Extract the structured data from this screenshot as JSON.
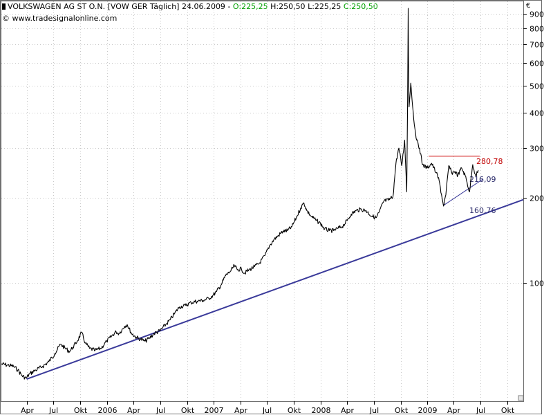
{
  "header": {
    "instrument": "VOLKSWAGEN AG ST O.N. [VOW GER  Täglich]",
    "date": "24.06.2009",
    "sep": "-",
    "open": "O:225,25",
    "high": "H:250,50",
    "low": "L:225,25",
    "close": "C:250,50",
    "copyright": "© www.tradesignalonline.com",
    "currency": "€"
  },
  "colors": {
    "price": "#000000",
    "trend_main": "#3a3a9a",
    "trend_small": "#3a3a9a",
    "resistance": "#d01818",
    "label_red": "#c00000",
    "label_blue": "#2a2a6a",
    "grid": "#c8c8c8",
    "frame": "#707070"
  },
  "chart_data": {
    "type": "line",
    "scale": "log",
    "ylim": [
      38,
      1000
    ],
    "y_ticks": [
      100,
      200,
      300,
      400,
      500,
      600,
      700,
      800,
      900
    ],
    "y_tick_labels": [
      "100",
      "200",
      "300",
      "400",
      "500",
      "600",
      "700",
      "800",
      "900"
    ],
    "x_ticks": [
      {
        "date": "2005-04-01",
        "label": "Apr"
      },
      {
        "date": "2005-07-01",
        "label": "Jul"
      },
      {
        "date": "2005-10-01",
        "label": "Okt"
      },
      {
        "date": "2006-01-01",
        "label": "2006"
      },
      {
        "date": "2006-04-01",
        "label": "Apr"
      },
      {
        "date": "2006-07-01",
        "label": "Jul"
      },
      {
        "date": "2006-10-01",
        "label": "Okt"
      },
      {
        "date": "2007-01-01",
        "label": "2007"
      },
      {
        "date": "2007-04-01",
        "label": "Apr"
      },
      {
        "date": "2007-07-01",
        "label": "Jul"
      },
      {
        "date": "2007-10-01",
        "label": "Okt"
      },
      {
        "date": "2008-01-01",
        "label": "2008"
      },
      {
        "date": "2008-04-01",
        "label": "Apr"
      },
      {
        "date": "2008-07-01",
        "label": "Jul"
      },
      {
        "date": "2008-10-01",
        "label": "Okt"
      },
      {
        "date": "2009-01-01",
        "label": "2009"
      },
      {
        "date": "2009-04-01",
        "label": "Apr"
      },
      {
        "date": "2009-07-01",
        "label": "Jul"
      },
      {
        "date": "2009-10-01",
        "label": "Okt"
      }
    ],
    "xlim": [
      "2005-01-01",
      "2009-11-25"
    ],
    "series": [
      {
        "points": [
          [
            "2005-01-03",
            51.5
          ],
          [
            "2005-01-24",
            51
          ],
          [
            "2005-02-14",
            50.5
          ],
          [
            "2005-03-01",
            49
          ],
          [
            "2005-03-15",
            46.8
          ],
          [
            "2005-03-29",
            45.8
          ],
          [
            "2005-04-10",
            47.5
          ],
          [
            "2005-05-01",
            49
          ],
          [
            "2005-05-25",
            50.5
          ],
          [
            "2005-06-15",
            52.5
          ],
          [
            "2005-07-05",
            56
          ],
          [
            "2005-07-25",
            60.5
          ],
          [
            "2005-08-10",
            58.5
          ],
          [
            "2005-08-25",
            57
          ],
          [
            "2005-09-05",
            59
          ],
          [
            "2005-09-20",
            62
          ],
          [
            "2005-10-05",
            66.5
          ],
          [
            "2005-10-18",
            61
          ],
          [
            "2005-11-01",
            58.5
          ],
          [
            "2005-11-20",
            57.5
          ],
          [
            "2005-12-10",
            58.5
          ],
          [
            "2005-12-30",
            62
          ],
          [
            "2006-01-15",
            64.5
          ],
          [
            "2006-01-31",
            67
          ],
          [
            "2006-02-10",
            66
          ],
          [
            "2006-03-01",
            70
          ],
          [
            "2006-03-10",
            71
          ],
          [
            "2006-03-25",
            66
          ],
          [
            "2006-04-10",
            64
          ],
          [
            "2006-04-25",
            63
          ],
          [
            "2006-05-10",
            62
          ],
          [
            "2006-05-25",
            63.5
          ],
          [
            "2006-06-10",
            66
          ],
          [
            "2006-06-30",
            67.5
          ],
          [
            "2006-07-20",
            71
          ],
          [
            "2006-08-05",
            74
          ],
          [
            "2006-08-20",
            78
          ],
          [
            "2006-09-05",
            82
          ],
          [
            "2006-09-25",
            83
          ],
          [
            "2006-10-15",
            85
          ],
          [
            "2006-11-05",
            86
          ],
          [
            "2006-11-25",
            86.5
          ],
          [
            "2006-12-15",
            88
          ],
          [
            "2006-12-28",
            90
          ],
          [
            "2007-01-10",
            93
          ],
          [
            "2007-01-25",
            98
          ],
          [
            "2007-02-10",
            106
          ],
          [
            "2007-02-28",
            110
          ],
          [
            "2007-03-12",
            115
          ],
          [
            "2007-03-22",
            111
          ],
          [
            "2007-04-05",
            112
          ],
          [
            "2007-04-15",
            108
          ],
          [
            "2007-05-01",
            111
          ],
          [
            "2007-05-20",
            114
          ],
          [
            "2007-06-05",
            117
          ],
          [
            "2007-06-25",
            125
          ],
          [
            "2007-07-10",
            135
          ],
          [
            "2007-07-25",
            142
          ],
          [
            "2007-08-10",
            147
          ],
          [
            "2007-08-25",
            152
          ],
          [
            "2007-09-10",
            153
          ],
          [
            "2007-09-25",
            158
          ],
          [
            "2007-10-10",
            170
          ],
          [
            "2007-10-25",
            184
          ],
          [
            "2007-11-05",
            192
          ],
          [
            "2007-11-15",
            180
          ],
          [
            "2007-11-30",
            172
          ],
          [
            "2007-12-15",
            167
          ],
          [
            "2008-01-01",
            162
          ],
          [
            "2008-01-15",
            155
          ],
          [
            "2008-01-31",
            153
          ],
          [
            "2008-02-15",
            153
          ],
          [
            "2008-03-01",
            156
          ],
          [
            "2008-03-15",
            158
          ],
          [
            "2008-04-01",
            166
          ],
          [
            "2008-04-15",
            175
          ],
          [
            "2008-05-01",
            180
          ],
          [
            "2008-05-20",
            182
          ],
          [
            "2008-06-05",
            180
          ],
          [
            "2008-06-25",
            172
          ],
          [
            "2008-07-10",
            170
          ],
          [
            "2008-07-20",
            178
          ],
          [
            "2008-08-05",
            195
          ],
          [
            "2008-08-20",
            196
          ],
          [
            "2008-09-05",
            202
          ],
          [
            "2008-09-15",
            265
          ],
          [
            "2008-09-25",
            300
          ],
          [
            "2008-10-05",
            260
          ],
          [
            "2008-10-15",
            320
          ],
          [
            "2008-10-22",
            210
          ],
          [
            "2008-10-25",
            450
          ],
          [
            "2008-10-27",
            940
          ],
          [
            "2008-10-28",
            640
          ],
          [
            "2008-10-30",
            420
          ],
          [
            "2008-11-05",
            510
          ],
          [
            "2008-11-15",
            380
          ],
          [
            "2008-11-25",
            320
          ],
          [
            "2008-12-05",
            300
          ],
          [
            "2008-12-15",
            262
          ],
          [
            "2008-12-31",
            255
          ],
          [
            "2009-01-15",
            265
          ],
          [
            "2009-01-31",
            245
          ],
          [
            "2009-02-10",
            230
          ],
          [
            "2009-02-20",
            200
          ],
          [
            "2009-02-25",
            187
          ],
          [
            "2009-03-05",
            205
          ],
          [
            "2009-03-15",
            260
          ],
          [
            "2009-03-25",
            245
          ],
          [
            "2009-04-05",
            248
          ],
          [
            "2009-04-15",
            240
          ],
          [
            "2009-04-28",
            255
          ],
          [
            "2009-05-10",
            240
          ],
          [
            "2009-05-25",
            210
          ],
          [
            "2009-06-05",
            262
          ],
          [
            "2009-06-15",
            240
          ],
          [
            "2009-06-24",
            250.5
          ]
        ]
      }
    ],
    "trendlines": [
      {
        "from": [
          "2005-03-31",
          45.5
        ],
        "to": [
          "2009-11-25",
          197
        ],
        "label": "160,76"
      },
      {
        "from": [
          "2009-02-25",
          188
        ],
        "to": [
          "2009-07-10",
          233
        ],
        "label": "216,09"
      }
    ],
    "resistance": {
      "from": "2009-01-05",
      "to": "2009-06-29",
      "value": 280.78,
      "label": "280,78"
    }
  }
}
